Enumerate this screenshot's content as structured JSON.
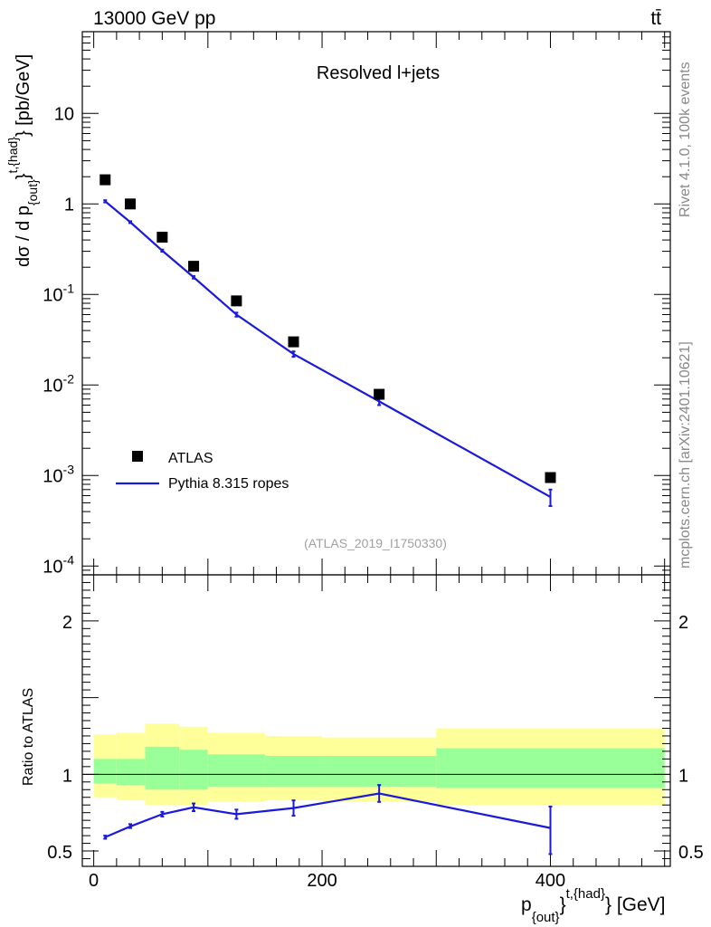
{
  "header": {
    "energy_label": "13000 GeV pp",
    "process_label": "tt̄",
    "analysis_title": "Resolved l+jets",
    "analysis_id": "(ATLAS_2019_I1750330)",
    "side_text_top": "Rivet 4.1.0,  100k events",
    "side_text_bottom": "mcplots.cern.ch [arXiv:2401.10621]"
  },
  "axes": {
    "main_ylabel": "dσ / d p_{out}^{t,{had}} [pb/GeV]",
    "ratio_ylabel": "Ratio to ATLAS",
    "xlabel": "p_{out}^{t,{had}} [GeV]"
  },
  "legend": {
    "data_label": "ATLAS",
    "mc_label": "Pythia 8.315 ropes"
  },
  "colors": {
    "mc_line": "#1a1adb",
    "data_marker": "#000000",
    "band_outer": "#ffff99",
    "band_inner": "#99ff99"
  },
  "chart_data": [
    {
      "type": "scatter",
      "title": "Resolved l+jets",
      "xlabel": "p_{out}^{t,{had}} [GeV]",
      "ylabel": "dσ / d p_{out}^{t,{had}} [pb/GeV]",
      "xlim": [
        -10,
        505
      ],
      "ylim": [
        8e-05,
        80
      ],
      "yscale": "log",
      "ytick_values": [
        0.0001,
        0.001,
        0.01,
        0.1,
        1,
        10
      ],
      "ytick_labels": [
        "10^{-4}",
        "10^{-3}",
        "10^{-2}",
        "10^{-1}",
        "1",
        "10"
      ],
      "series": [
        {
          "name": "ATLAS",
          "x": [
            10,
            32,
            60,
            87.5,
            125,
            175,
            250,
            400
          ],
          "y": [
            1.85,
            1.0,
            0.43,
            0.205,
            0.085,
            0.03,
            0.0079,
            0.00095
          ]
        },
        {
          "name": "Pythia 8.315 ropes",
          "x": [
            10,
            32,
            60,
            87.5,
            125,
            175,
            250,
            400
          ],
          "y": [
            1.07,
            0.63,
            0.305,
            0.155,
            0.06,
            0.022,
            0.0066,
            0.00058
          ],
          "y_low": [
            1.04,
            0.615,
            0.297,
            0.15,
            0.057,
            0.0205,
            0.006,
            0.00046
          ],
          "y_high": [
            1.1,
            0.645,
            0.313,
            0.16,
            0.063,
            0.0235,
            0.0072,
            0.0007
          ]
        }
      ]
    },
    {
      "type": "line",
      "ylabel": "Ratio to ATLAS",
      "xlabel": "p_{out}^{t,{had}} [GeV]",
      "xlim": [
        -10,
        505
      ],
      "ylim": [
        0.4,
        2.3
      ],
      "ytick_values": [
        0.5,
        1,
        2
      ],
      "ytick_labels": [
        "0.5",
        "1",
        "2"
      ],
      "xtick_values": [
        0,
        200,
        400
      ],
      "xtick_labels": [
        "0",
        "200",
        "400"
      ],
      "bin_edges": [
        0,
        20,
        45,
        75,
        100,
        150,
        200,
        300,
        500
      ],
      "band_outer": [
        [
          0.85,
          1.26
        ],
        [
          0.83,
          1.27
        ],
        [
          0.8,
          1.33
        ],
        [
          0.8,
          1.31
        ],
        [
          0.82,
          1.27
        ],
        [
          0.83,
          1.25
        ],
        [
          0.82,
          1.24
        ],
        [
          0.8,
          1.3
        ]
      ],
      "band_inner": [
        [
          0.94,
          1.1
        ],
        [
          0.93,
          1.1
        ],
        [
          0.9,
          1.18
        ],
        [
          0.9,
          1.16
        ],
        [
          0.92,
          1.13
        ],
        [
          0.92,
          1.12
        ],
        [
          0.92,
          1.12
        ],
        [
          0.91,
          1.17
        ]
      ],
      "series": [
        {
          "name": "Pythia 8.315 ropes / ATLAS",
          "x": [
            10,
            32,
            60,
            87.5,
            125,
            175,
            250,
            400
          ],
          "y": [
            0.59,
            0.66,
            0.74,
            0.785,
            0.74,
            0.78,
            0.875,
            0.65
          ],
          "y_low": [
            0.58,
            0.65,
            0.725,
            0.76,
            0.71,
            0.73,
            0.82,
            0.48
          ],
          "y_high": [
            0.6,
            0.675,
            0.755,
            0.81,
            0.77,
            0.83,
            0.93,
            0.79
          ]
        }
      ]
    }
  ]
}
